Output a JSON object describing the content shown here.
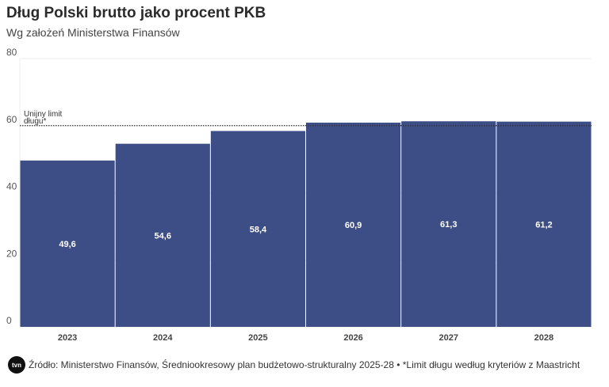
{
  "chart_data": {
    "type": "bar",
    "title": "Dług Polski brutto jako procent PKB",
    "subtitle": "Wg założeń Ministerstwa Finansów",
    "categories": [
      "2023",
      "2024",
      "2025",
      "2026",
      "2027",
      "2028"
    ],
    "values": [
      49.6,
      54.6,
      58.4,
      60.9,
      61.3,
      61.2
    ],
    "value_labels": [
      "49,6",
      "54,6",
      "58,4",
      "60,9",
      "61,3",
      "61,2"
    ],
    "ylim": [
      0,
      80
    ],
    "yticks": [
      0,
      20,
      40,
      60,
      80
    ],
    "grid": true,
    "reference_line": {
      "value": 60,
      "label_line1": "Unijny limit",
      "label_line2": "długu*",
      "style": "dotted"
    },
    "bar_color": "#3d4d85"
  },
  "footer": {
    "logo": "tvn24",
    "source": "Źródło: Ministerstwo Finansów, Średniookresowy plan budżetowo-strukturalny 2025-28 • *Limit długu według kryteriów z Maastricht"
  }
}
